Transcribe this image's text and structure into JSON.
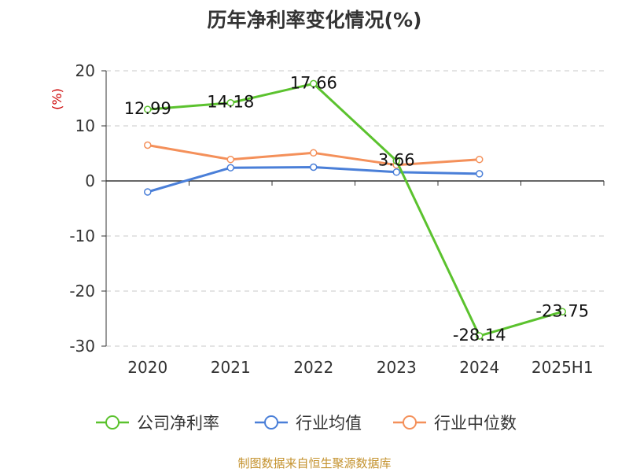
{
  "chart_data": {
    "type": "line",
    "title": "历年净利率变化情况(%)",
    "ylabel": "(%)",
    "xlabel": "",
    "categories": [
      "2020",
      "2021",
      "2022",
      "2023",
      "2024",
      "2025H1"
    ],
    "ylim": [
      -30,
      20
    ],
    "yticks": [
      20,
      10,
      0,
      -10,
      -20,
      -30
    ],
    "grid": true,
    "legend_position": "bottom",
    "series": [
      {
        "name": "公司净利率",
        "color": "#5bc22e",
        "values": [
          12.99,
          14.18,
          17.66,
          3.66,
          -28.14,
          -23.75
        ],
        "labels": [
          "12.99",
          "14.18",
          "17.66",
          "3.66",
          "-28.14",
          "-23.75"
        ]
      },
      {
        "name": "行业均值",
        "color": "#4a7fd8",
        "values": [
          -2.0,
          2.4,
          2.5,
          1.6,
          1.3,
          null
        ]
      },
      {
        "name": "行业中位数",
        "color": "#f4905a",
        "values": [
          6.5,
          3.9,
          5.1,
          2.9,
          3.9,
          null
        ]
      }
    ]
  },
  "source": "制图数据来自恒生聚源数据库"
}
